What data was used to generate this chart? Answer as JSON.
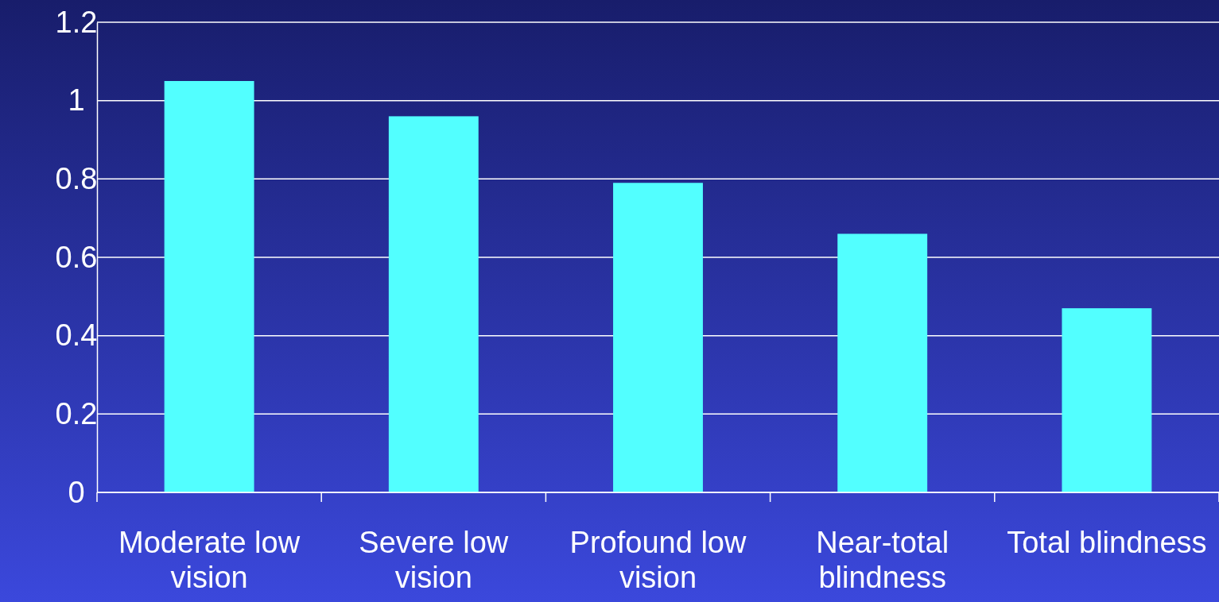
{
  "chart_data": {
    "type": "bar",
    "categories": [
      "Moderate low vision",
      "Severe low vision",
      "Profound low vision",
      "Near-total blindness",
      "Total blindness"
    ],
    "values": [
      1.05,
      0.96,
      0.79,
      0.66,
      0.47
    ],
    "color": "#52ffff",
    "ylim": [
      0,
      1.2
    ],
    "yticks": [
      0,
      0.2,
      0.4,
      0.6,
      0.8,
      1,
      1.2
    ],
    "grid": "y"
  }
}
